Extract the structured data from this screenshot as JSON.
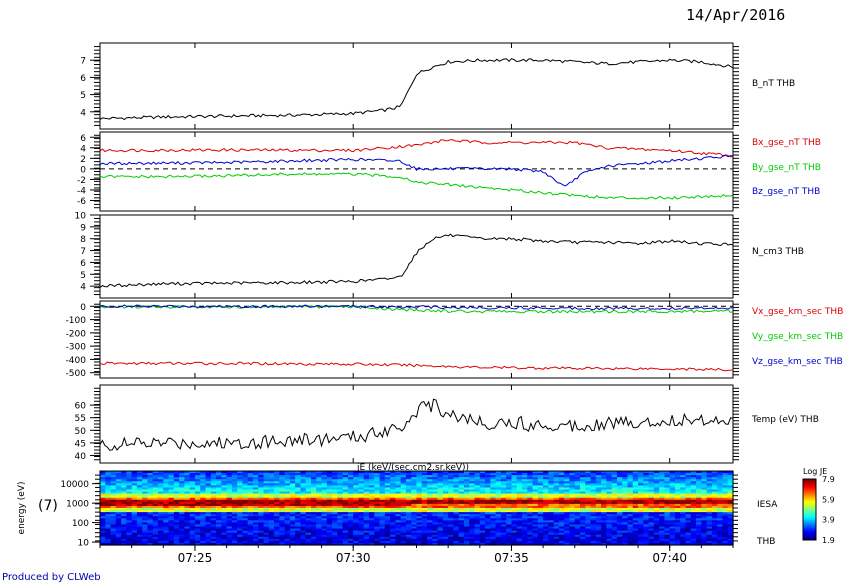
{
  "header": {
    "date": "14/Apr/2016"
  },
  "footer": {
    "produced_by": "Produced by CLWeb"
  },
  "chart_data": [
    {
      "type": "line",
      "x_range": [
        "07:22",
        "07:42"
      ],
      "ylim": [
        3,
        8
      ],
      "yticks": [
        4,
        5,
        6,
        7
      ],
      "series": [
        {
          "name": "B_nT THB",
          "color": "#000000",
          "x": [
            "07:22",
            "07:24",
            "07:26",
            "07:28",
            "07:30",
            "07:31",
            "07:31.5",
            "07:32",
            "07:32.5",
            "07:33",
            "07:34",
            "07:35",
            "07:36",
            "07:37",
            "07:38",
            "07:39",
            "07:40",
            "07:41",
            "07:42"
          ],
          "y": [
            3.6,
            3.7,
            3.75,
            3.8,
            3.9,
            4.1,
            4.3,
            6.2,
            6.6,
            6.9,
            7.0,
            7.0,
            7.0,
            6.9,
            6.8,
            6.9,
            7.0,
            6.9,
            6.6
          ]
        }
      ]
    },
    {
      "type": "line",
      "x_range": [
        "07:22",
        "07:42"
      ],
      "ylim": [
        -8,
        7
      ],
      "yticks": [
        -6,
        -4,
        -2,
        0,
        2,
        4,
        6
      ],
      "series": [
        {
          "name": "Bx_gse_nT THB",
          "color": "#dd0000",
          "x": [
            "07:22",
            "07:26",
            "07:30",
            "07:32",
            "07:33",
            "07:34",
            "07:35",
            "07:36",
            "07:37",
            "07:38",
            "07:40",
            "07:42"
          ],
          "y": [
            3.5,
            3.6,
            3.5,
            4.5,
            5.5,
            5.0,
            5.0,
            5.0,
            5.0,
            4.0,
            3.5,
            2.5
          ]
        },
        {
          "name": "By_gse_nT THB",
          "color": "#00cc00",
          "x": [
            "07:22",
            "07:24",
            "07:26",
            "07:28",
            "07:30",
            "07:31.5",
            "07:32",
            "07:33",
            "07:34",
            "07:35",
            "07:36",
            "07:37",
            "07:38",
            "07:39",
            "07:40",
            "07:42"
          ],
          "y": [
            -1.5,
            -1.5,
            -1.3,
            -1.0,
            -1.0,
            -1.5,
            -2.5,
            -3.0,
            -3.5,
            -4.0,
            -4.5,
            -5.0,
            -5.5,
            -5.5,
            -5.5,
            -5.0
          ]
        },
        {
          "name": "Bz_gse_nT THB",
          "color": "#0000cc",
          "x": [
            "07:22",
            "07:26",
            "07:30",
            "07:31.5",
            "07:32",
            "07:33",
            "07:34",
            "07:35",
            "07:36",
            "07:36.7",
            "07:37.2",
            "07:38",
            "07:40",
            "07:42"
          ],
          "y": [
            1.0,
            1.2,
            1.8,
            1.5,
            0.0,
            0.0,
            0.0,
            0.0,
            -0.5,
            -3.5,
            -1.0,
            0.5,
            1.5,
            2.5
          ]
        }
      ],
      "reference_line": 0
    },
    {
      "type": "line",
      "x_range": [
        "07:22",
        "07:42"
      ],
      "ylim": [
        3,
        10
      ],
      "yticks": [
        4,
        5,
        6,
        7,
        8,
        9,
        10
      ],
      "series": [
        {
          "name": "N_cm3 THB",
          "color": "#000000",
          "x": [
            "07:22",
            "07:24",
            "07:26",
            "07:28",
            "07:30",
            "07:31",
            "07:31.5",
            "07:32",
            "07:32.5",
            "07:33",
            "07:34",
            "07:35",
            "07:36",
            "07:37",
            "07:38",
            "07:39",
            "07:40",
            "07:41",
            "07:42"
          ],
          "y": [
            4.0,
            4.2,
            4.25,
            4.3,
            4.4,
            4.6,
            4.8,
            6.8,
            8.0,
            8.3,
            8.0,
            8.0,
            7.8,
            7.7,
            7.7,
            7.6,
            7.8,
            7.6,
            7.5
          ]
        }
      ]
    },
    {
      "type": "line",
      "x_range": [
        "07:22",
        "07:42"
      ],
      "ylim": [
        -540,
        40
      ],
      "yticks": [
        -500,
        -400,
        -300,
        -200,
        -100,
        0
      ],
      "series": [
        {
          "name": "Vx_gse_km_sec THB",
          "color": "#dd0000",
          "x": [
            "07:22",
            "07:26",
            "07:30",
            "07:32",
            "07:34",
            "07:36",
            "07:38",
            "07:40",
            "07:42"
          ],
          "y": [
            -430,
            -430,
            -435,
            -445,
            -460,
            -465,
            -468,
            -470,
            -480
          ]
        },
        {
          "name": "Vy_gse_km_sec THB",
          "color": "#00cc00",
          "x": [
            "07:22",
            "07:26",
            "07:30",
            "07:32",
            "07:34",
            "07:36",
            "07:38",
            "07:40",
            "07:42"
          ],
          "y": [
            -5,
            -5,
            -5,
            -30,
            -40,
            -40,
            -40,
            -38,
            -35
          ]
        },
        {
          "name": "Vz_gse_km_sec THB",
          "color": "#0000cc",
          "x": [
            "07:22",
            "07:26",
            "07:30",
            "07:32",
            "07:34",
            "07:36",
            "07:38",
            "07:40",
            "07:42"
          ],
          "y": [
            0,
            0,
            0,
            -5,
            -10,
            -12,
            -15,
            -15,
            -10
          ]
        }
      ],
      "reference_line": 0
    },
    {
      "type": "line",
      "x_range": [
        "07:22",
        "07:42"
      ],
      "ylim": [
        37,
        68
      ],
      "yticks": [
        40,
        45,
        50,
        55,
        60
      ],
      "series": [
        {
          "name": "Temp (eV) THB",
          "color": "#000000",
          "x": [
            "07:22",
            "07:24",
            "07:26",
            "07:28",
            "07:30",
            "07:31",
            "07:31.7",
            "07:32",
            "07:32.5",
            "07:33",
            "07:34",
            "07:35",
            "07:36",
            "07:37",
            "07:38",
            "07:39",
            "07:40",
            "07:41",
            "07:42"
          ],
          "y": [
            44,
            45,
            45,
            46,
            47,
            50,
            53,
            58,
            60,
            57,
            53,
            53,
            52,
            52,
            53,
            53,
            54,
            54,
            55
          ]
        }
      ]
    },
    {
      "type": "heatmap",
      "title": "jE (keV/(sec.cm2.sr.keV))",
      "ylabel": "energy (eV)",
      "left_label": "(7)",
      "yticks": [
        "10",
        "100",
        "1000",
        "10000"
      ],
      "x_range": [
        "07:22",
        "07:42"
      ],
      "xticks": [
        "07:25",
        "07:30",
        "07:35",
        "07:40"
      ],
      "right_labels": [
        "IESA",
        "THB"
      ],
      "colorbar": {
        "title": "Log JE",
        "ticks": [
          "7.9",
          "5.9",
          "3.9",
          "1.9"
        ]
      },
      "bands": [
        {
          "energy_range_log": [
            2.7,
            3.1
          ],
          "level": 7.5
        },
        {
          "energy_range_log": [
            3.1,
            3.4
          ],
          "level": 6.2
        },
        {
          "energy_range_log": [
            3.4,
            3.8
          ],
          "level": 5.0
        },
        {
          "energy_range_log": [
            3.8,
            4.6
          ],
          "level": 3.5
        },
        {
          "energy_range_log": [
            1.0,
            2.7
          ],
          "level": 2.7
        }
      ]
    }
  ]
}
